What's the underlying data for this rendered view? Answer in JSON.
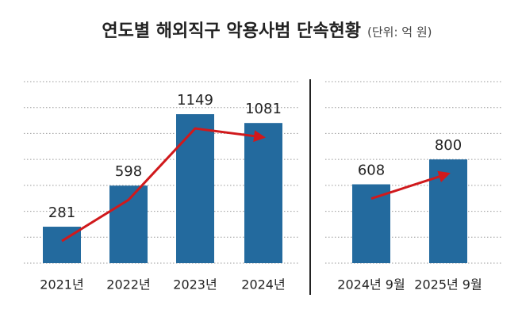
{
  "chart_data": [
    {
      "type": "bar",
      "title": "연도별 해외직구 악용사범 단속현황",
      "subtitle": "(단위: 억 원)",
      "categories": [
        "2021년",
        "2022년",
        "2023년",
        "2024년"
      ],
      "values": [
        281,
        598,
        1149,
        1081
      ],
      "color": "#236a9e",
      "trend_color": "#d0191c",
      "ylim": [
        0,
        1400
      ],
      "yticks": [
        0,
        200,
        400,
        600,
        800,
        1000,
        1200,
        1400
      ],
      "grid": true
    },
    {
      "type": "bar",
      "categories": [
        "2024년 9월",
        "2025년 9월"
      ],
      "values": [
        608,
        800
      ],
      "color": "#236a9e",
      "trend_color": "#d0191c",
      "ylim": [
        0,
        1400
      ],
      "yticks": [
        0,
        200,
        400,
        600,
        800,
        1000,
        1200,
        1400
      ],
      "grid": true
    }
  ]
}
